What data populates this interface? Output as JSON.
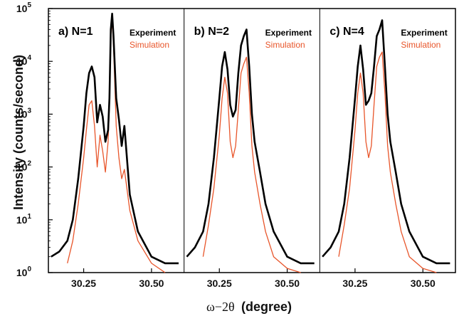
{
  "chart_data": {
    "type": "line",
    "ylabel": "Intensity (counts/second)",
    "xlabel_symbol": "ω−2θ",
    "xlabel_unit": "(degree)",
    "yscale": "log",
    "ylim": [
      1,
      100000
    ],
    "xlim": [
      30.12,
      30.62
    ],
    "y_ticks": [
      {
        "base": "10",
        "exp": "0"
      },
      {
        "base": "10",
        "exp": "1"
      },
      {
        "base": "10",
        "exp": "2"
      },
      {
        "base": "10",
        "exp": "3"
      },
      {
        "base": "10",
        "exp": "4"
      },
      {
        "base": "10",
        "exp": "5"
      }
    ],
    "x_ticks": [
      "30.25",
      "30.50"
    ],
    "x_tick_values": [
      30.25,
      30.5
    ],
    "legend": {
      "experiment": "Experiment",
      "simulation": "Simulation"
    },
    "colors": {
      "experiment": "#000000",
      "simulation": "#e8552a"
    },
    "panels": [
      {
        "label": "a) N=1",
        "series": [
          {
            "name": "Experiment",
            "x": [
              30.13,
              30.16,
              30.19,
              30.21,
              30.23,
              30.25,
              30.26,
              30.27,
              30.28,
              30.29,
              30.3,
              30.31,
              30.32,
              30.33,
              30.34,
              30.345,
              30.35,
              30.355,
              30.36,
              30.37,
              30.38,
              30.39,
              30.4,
              30.42,
              30.45,
              30.5,
              30.55,
              30.6
            ],
            "y": [
              2,
              2.5,
              4,
              10,
              60,
              600,
              2500,
              6000,
              8000,
              5000,
              700,
              1500,
              900,
              300,
              500,
              2000,
              40000,
              80000,
              30000,
              2000,
              800,
              250,
              600,
              30,
              6,
              2,
              1.5,
              1.5
            ]
          },
          {
            "name": "Simulation",
            "x": [
              30.19,
              30.21,
              30.23,
              30.25,
              30.26,
              30.27,
              30.28,
              30.29,
              30.3,
              30.31,
              30.32,
              30.33,
              30.34,
              30.345,
              30.35,
              30.355,
              30.36,
              30.37,
              30.38,
              30.39,
              30.4,
              30.42,
              30.45,
              30.5,
              30.55
            ],
            "y": [
              1.5,
              4,
              20,
              150,
              500,
              1500,
              1800,
              600,
              100,
              400,
              200,
              80,
              300,
              1500,
              30000,
              60000,
              20000,
              600,
              150,
              60,
              90,
              15,
              4,
              1.5,
              1
            ]
          }
        ]
      },
      {
        "label": "b) N=2",
        "series": [
          {
            "name": "Experiment",
            "x": [
              30.13,
              30.16,
              30.19,
              30.21,
              30.23,
              30.25,
              30.26,
              30.27,
              30.28,
              30.29,
              30.3,
              30.31,
              30.32,
              30.33,
              30.34,
              30.35,
              30.36,
              30.37,
              30.38,
              30.4,
              30.42,
              30.45,
              30.5,
              30.55,
              30.6
            ],
            "y": [
              2,
              3,
              6,
              20,
              150,
              2000,
              8000,
              15000,
              7000,
              1500,
              900,
              1200,
              6000,
              20000,
              30000,
              40000,
              8000,
              1000,
              300,
              80,
              20,
              6,
              2,
              1.5,
              1.5
            ]
          },
          {
            "name": "Simulation",
            "x": [
              30.19,
              30.21,
              30.23,
              30.25,
              30.26,
              30.27,
              30.28,
              30.29,
              30.3,
              30.31,
              30.32,
              30.33,
              30.34,
              30.35,
              30.36,
              30.37,
              30.38,
              30.4,
              30.42,
              30.45,
              30.5,
              30.55
            ],
            "y": [
              2,
              8,
              40,
              400,
              2000,
              5000,
              2500,
              300,
              150,
              250,
              1200,
              6000,
              9000,
              12000,
              2500,
              250,
              80,
              20,
              6,
              2,
              1.2,
              1
            ]
          }
        ]
      },
      {
        "label": "c) N=4",
        "series": [
          {
            "name": "Experiment",
            "x": [
              30.13,
              30.16,
              30.19,
              30.21,
              30.23,
              30.25,
              30.26,
              30.27,
              30.28,
              30.29,
              30.3,
              30.31,
              30.32,
              30.33,
              30.34,
              30.35,
              30.36,
              30.37,
              30.38,
              30.4,
              30.42,
              30.45,
              30.5,
              30.55,
              30.6
            ],
            "y": [
              2,
              3,
              6,
              20,
              150,
              2000,
              8000,
              20000,
              7000,
              1500,
              1800,
              2500,
              8000,
              30000,
              40000,
              60000,
              8000,
              1000,
              300,
              80,
              20,
              6,
              2,
              1.5,
              1.5
            ]
          },
          {
            "name": "Simulation",
            "x": [
              30.19,
              30.21,
              30.23,
              30.25,
              30.26,
              30.27,
              30.28,
              30.29,
              30.3,
              30.31,
              30.32,
              30.33,
              30.34,
              30.35,
              30.36,
              30.37,
              30.38,
              30.4,
              30.42,
              30.45,
              30.5,
              30.55
            ],
            "y": [
              2,
              8,
              40,
              500,
              2500,
              6000,
              2500,
              300,
              150,
              250,
              1500,
              8000,
              12000,
              15000,
              2500,
              250,
              80,
              20,
              6,
              2,
              1.2,
              1
            ]
          }
        ]
      }
    ]
  }
}
